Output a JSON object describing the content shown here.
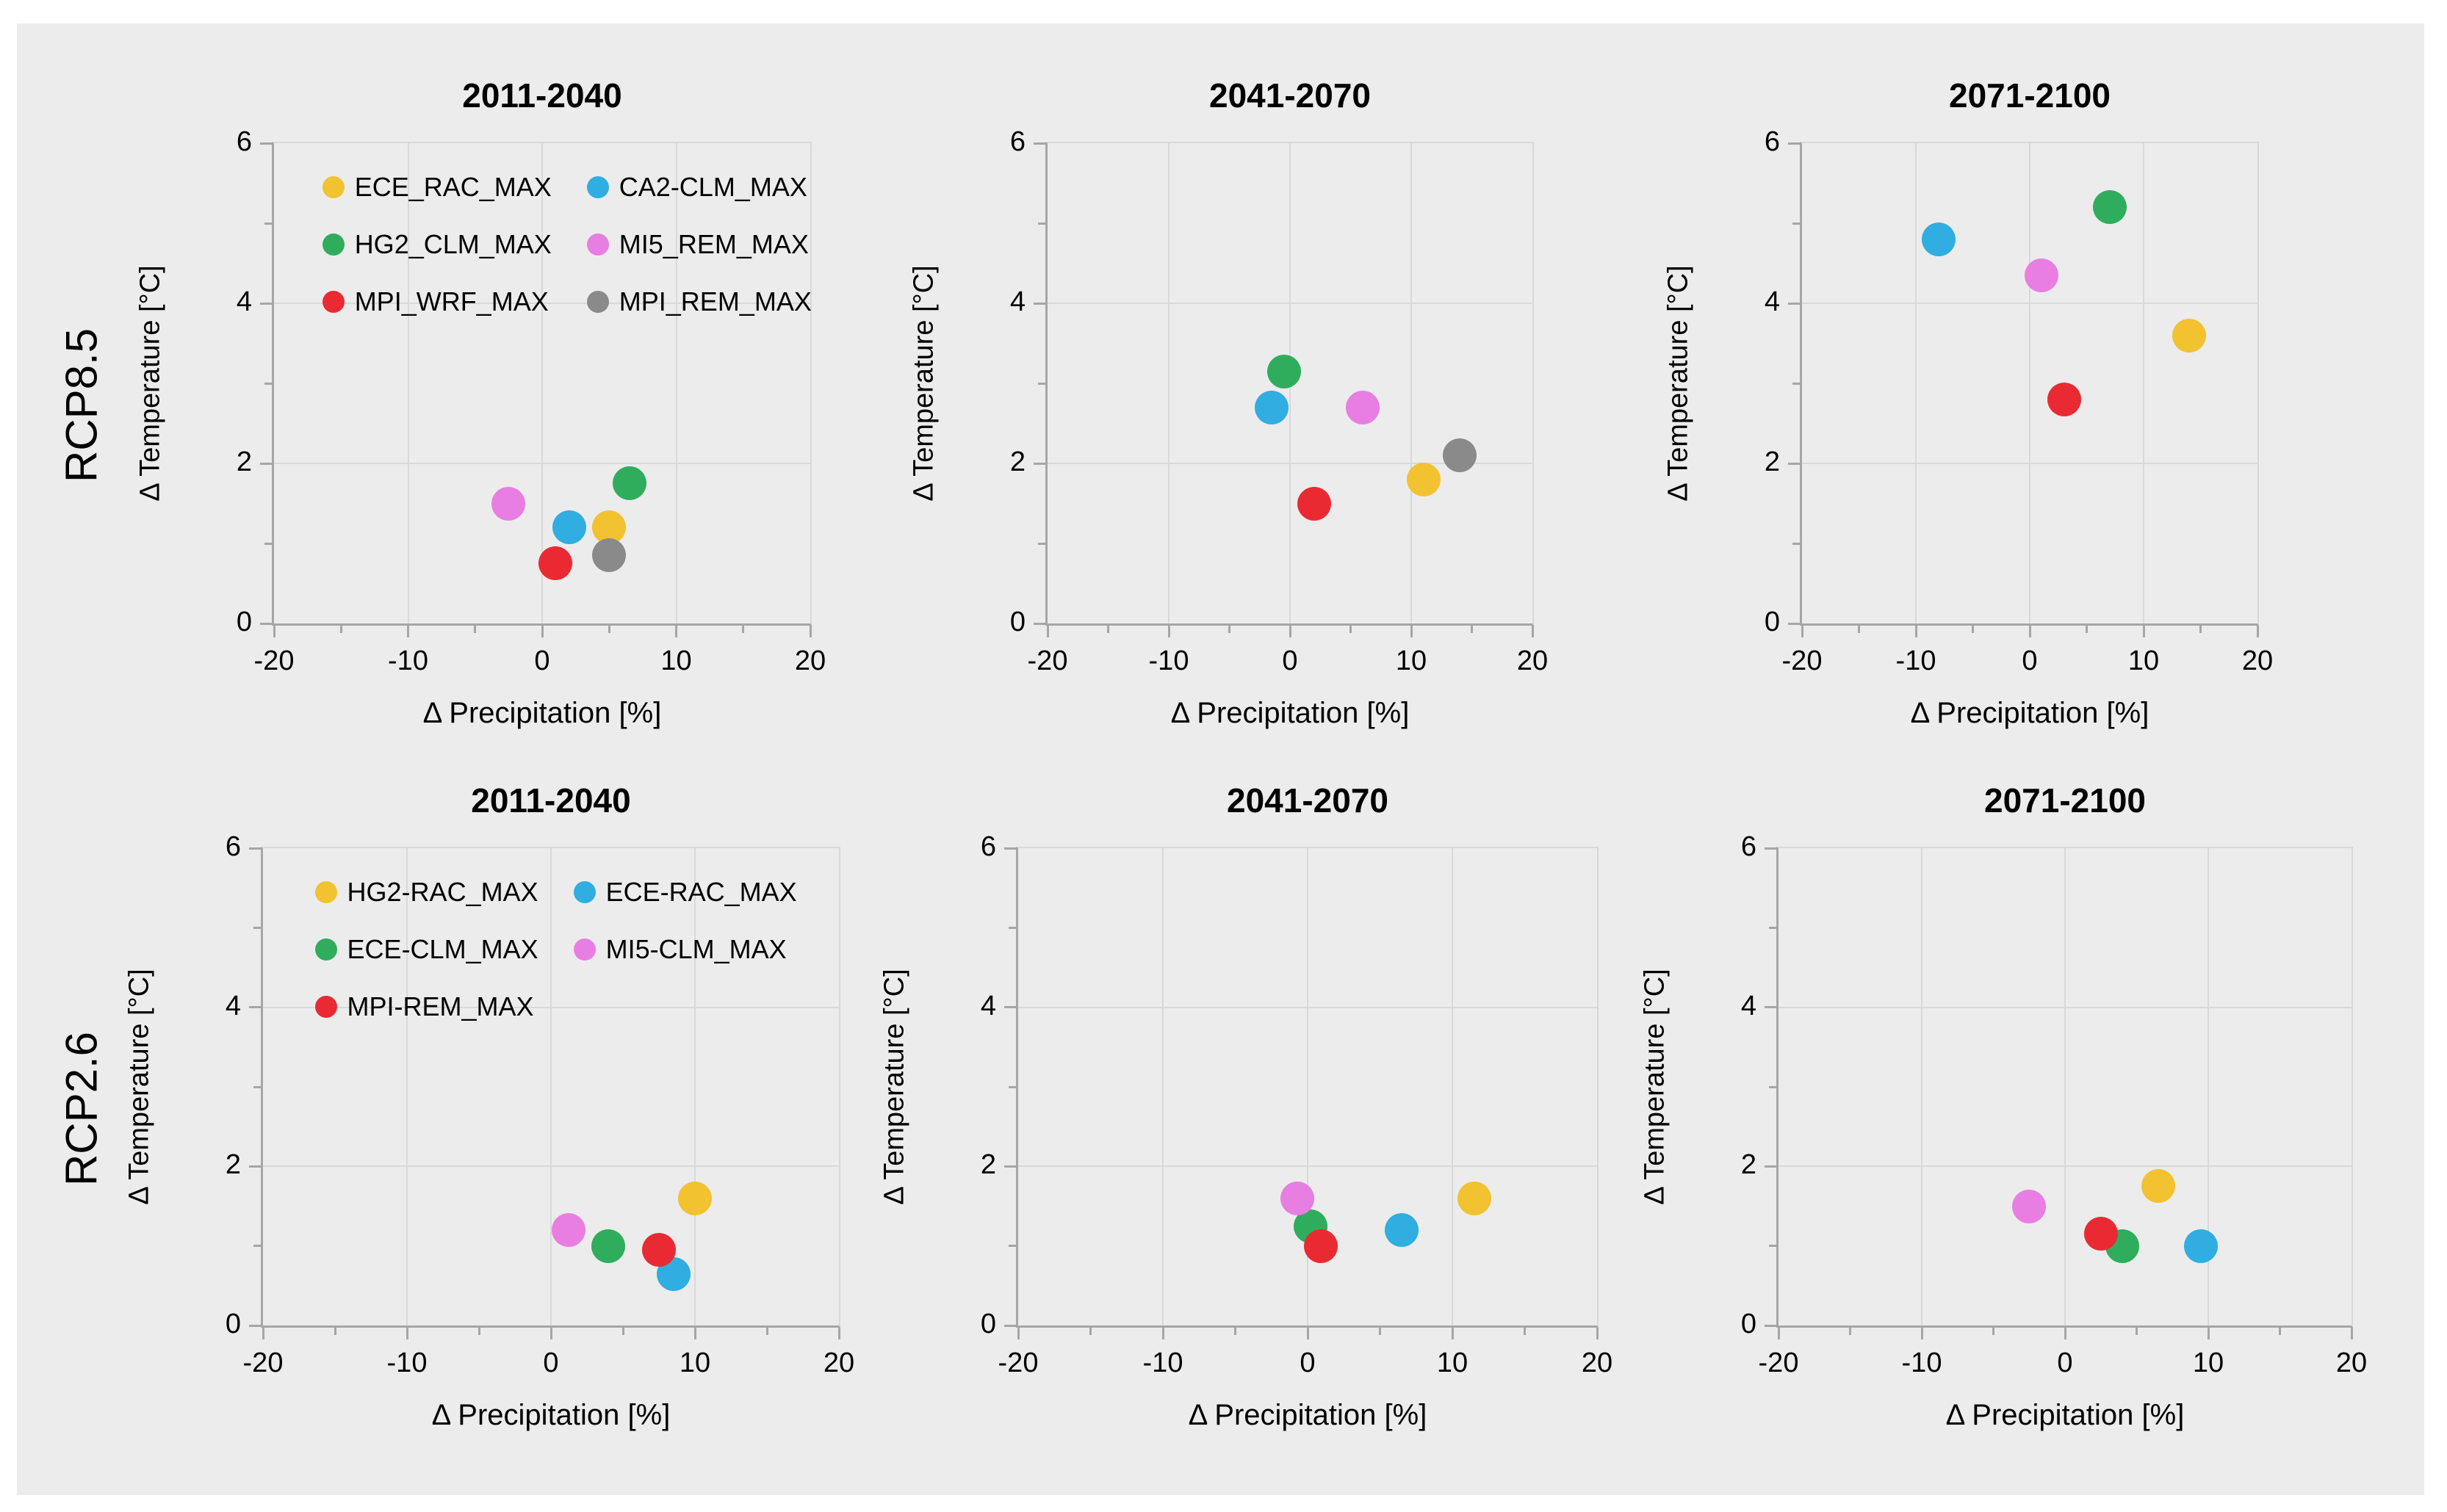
{
  "page": {
    "background": "#FFFFFF",
    "panel_background": "#ECECEC",
    "gridline_color": "#D9D9D9",
    "axis_line_color": "#A6A6A6",
    "text_color": "#000000"
  },
  "rows": [
    {
      "label": "RCP8.5"
    },
    {
      "label": "RCP2.6"
    }
  ],
  "series_colors": {
    "yellow": "#F2C230",
    "blue": "#30ADE1",
    "green": "#2FAD5D",
    "magenta": "#E87EE2",
    "red": "#EA2A33",
    "gray": "#8A8A8A"
  },
  "chart_data": [
    {
      "type": "scatter",
      "row": "RCP8.5",
      "title": "2011-2040",
      "xlabel": "Δ Precipitation [%]",
      "ylabel": "Δ Temperature [°C]",
      "xlim": [
        -20,
        20
      ],
      "ylim": [
        0,
        6
      ],
      "xticks": [
        -20,
        -10,
        0,
        10,
        20
      ],
      "yticks": [
        0,
        2,
        4,
        6
      ],
      "xminor": [
        -15,
        -5,
        5,
        15
      ],
      "yminor": [
        1,
        3,
        5
      ],
      "grid": true,
      "show_legend": true,
      "legend_position": "top-left",
      "points": [
        {
          "model": "ECE_RAC_MAX",
          "color": "#F2C230",
          "x": 5,
          "y": 1.2
        },
        {
          "model": "CA2-CLM_MAX",
          "color": "#30ADE1",
          "x": 2,
          "y": 1.2
        },
        {
          "model": "HG2_CLM_MAX",
          "color": "#2FAD5D",
          "x": 6.5,
          "y": 1.75
        },
        {
          "model": "MI5_REM_MAX",
          "color": "#E87EE2",
          "x": -2.5,
          "y": 1.5
        },
        {
          "model": "MPI_WRF_MAX",
          "color": "#EA2A33",
          "x": 1,
          "y": 0.75
        },
        {
          "model": "MPI_REM_MAX",
          "color": "#8A8A8A",
          "x": 5,
          "y": 0.85
        }
      ]
    },
    {
      "type": "scatter",
      "row": "RCP8.5",
      "title": "2041-2070",
      "xlabel": "Δ Precipitation [%]",
      "ylabel": "Δ Temperature [°C]",
      "xlim": [
        -20,
        20
      ],
      "ylim": [
        0,
        6
      ],
      "xticks": [
        -20,
        -10,
        0,
        10,
        20
      ],
      "yticks": [
        0,
        2,
        4,
        6
      ],
      "xminor": [
        -15,
        -5,
        5,
        15
      ],
      "yminor": [
        1,
        3,
        5
      ],
      "grid": true,
      "show_legend": false,
      "points": [
        {
          "model": "ECE_RAC_MAX",
          "color": "#F2C230",
          "x": 11,
          "y": 1.8
        },
        {
          "model": "CA2-CLM_MAX",
          "color": "#30ADE1",
          "x": -1.5,
          "y": 2.7
        },
        {
          "model": "HG2_CLM_MAX",
          "color": "#2FAD5D",
          "x": -0.5,
          "y": 3.15
        },
        {
          "model": "MI5_REM_MAX",
          "color": "#E87EE2",
          "x": 6,
          "y": 2.7
        },
        {
          "model": "MPI_WRF_MAX",
          "color": "#EA2A33",
          "x": 2,
          "y": 1.5
        },
        {
          "model": "MPI_REM_MAX",
          "color": "#8A8A8A",
          "x": 14,
          "y": 2.1
        }
      ]
    },
    {
      "type": "scatter",
      "row": "RCP8.5",
      "title": "2071-2100",
      "xlabel": "Δ Precipitation [%]",
      "ylabel": "Δ Temperature [°C]",
      "xlim": [
        -20,
        20
      ],
      "ylim": [
        0,
        6
      ],
      "xticks": [
        -20,
        -10,
        0,
        10,
        20
      ],
      "yticks": [
        0,
        2,
        4,
        6
      ],
      "xminor": [
        -15,
        -5,
        5,
        15
      ],
      "yminor": [
        1,
        3,
        5
      ],
      "grid": true,
      "show_legend": false,
      "points": [
        {
          "model": "ECE_RAC_MAX",
          "color": "#F2C230",
          "x": 14,
          "y": 3.6
        },
        {
          "model": "CA2-CLM_MAX",
          "color": "#30ADE1",
          "x": -8,
          "y": 4.8
        },
        {
          "model": "HG2_CLM_MAX",
          "color": "#2FAD5D",
          "x": 7,
          "y": 5.2
        },
        {
          "model": "MI5_REM_MAX",
          "color": "#E87EE2",
          "x": 1,
          "y": 4.35
        },
        {
          "model": "MPI_WRF_MAX",
          "color": "#EA2A33",
          "x": 3,
          "y": 2.8
        }
      ]
    },
    {
      "type": "scatter",
      "row": "RCP2.6",
      "title": "2011-2040",
      "xlabel": "Δ Precipitation [%]",
      "ylabel": "Δ Temperature [°C]",
      "xlim": [
        -20,
        20
      ],
      "ylim": [
        0,
        6
      ],
      "xticks": [
        -20,
        -10,
        0,
        10,
        20
      ],
      "yticks": [
        0,
        2,
        4,
        6
      ],
      "xminor": [
        -15,
        -5,
        5,
        15
      ],
      "yminor": [
        1,
        3,
        5
      ],
      "grid": true,
      "show_legend": true,
      "legend_position": "top-left",
      "points": [
        {
          "model": "HG2-RAC_MAX",
          "color": "#F2C230",
          "x": 10,
          "y": 1.6
        },
        {
          "model": "ECE-RAC_MAX",
          "color": "#30ADE1",
          "x": 8.5,
          "y": 0.65
        },
        {
          "model": "ECE-CLM_MAX",
          "color": "#2FAD5D",
          "x": 4,
          "y": 1.0
        },
        {
          "model": "MI5-CLM_MAX",
          "color": "#E87EE2",
          "x": 1.2,
          "y": 1.2
        },
        {
          "model": "MPI-REM_MAX",
          "color": "#EA2A33",
          "x": 7.5,
          "y": 0.95
        }
      ]
    },
    {
      "type": "scatter",
      "row": "RCP2.6",
      "title": "2041-2070",
      "xlabel": "Δ Precipitation [%]",
      "ylabel": "Δ Temperature [°C]",
      "xlim": [
        -20,
        20
      ],
      "ylim": [
        0,
        6
      ],
      "xticks": [
        -20,
        -10,
        0,
        10,
        20
      ],
      "yticks": [
        0,
        2,
        4,
        6
      ],
      "xminor": [
        -15,
        -5,
        5,
        15
      ],
      "yminor": [
        1,
        3,
        5
      ],
      "grid": true,
      "show_legend": false,
      "points": [
        {
          "model": "HG2-RAC_MAX",
          "color": "#F2C230",
          "x": 11.5,
          "y": 1.6
        },
        {
          "model": "ECE-RAC_MAX",
          "color": "#30ADE1",
          "x": 6.5,
          "y": 1.2
        },
        {
          "model": "ECE-CLM_MAX",
          "color": "#2FAD5D",
          "x": 0.2,
          "y": 1.25
        },
        {
          "model": "MI5-CLM_MAX",
          "color": "#E87EE2",
          "x": -0.7,
          "y": 1.6
        },
        {
          "model": "MPI-REM_MAX",
          "color": "#EA2A33",
          "x": 0.9,
          "y": 1.0
        }
      ]
    },
    {
      "type": "scatter",
      "row": "RCP2.6",
      "title": "2071-2100",
      "xlabel": "Δ Precipitation [%]",
      "ylabel": "Δ Temperature [°C]",
      "xlim": [
        -20,
        20
      ],
      "ylim": [
        0,
        6
      ],
      "xticks": [
        -20,
        -10,
        0,
        10,
        20
      ],
      "yticks": [
        0,
        2,
        4,
        6
      ],
      "xminor": [
        -15,
        -5,
        5,
        15
      ],
      "yminor": [
        1,
        3,
        5
      ],
      "grid": true,
      "show_legend": false,
      "points": [
        {
          "model": "HG2-RAC_MAX",
          "color": "#F2C230",
          "x": 6.5,
          "y": 1.75
        },
        {
          "model": "ECE-RAC_MAX",
          "color": "#30ADE1",
          "x": 9.5,
          "y": 1.0
        },
        {
          "model": "ECE-CLM_MAX",
          "color": "#2FAD5D",
          "x": 4,
          "y": 1.0
        },
        {
          "model": "MI5-CLM_MAX",
          "color": "#E87EE2",
          "x": -2.5,
          "y": 1.5
        },
        {
          "model": "MPI-REM_MAX",
          "color": "#EA2A33",
          "x": 2.5,
          "y": 1.15
        }
      ]
    }
  ]
}
